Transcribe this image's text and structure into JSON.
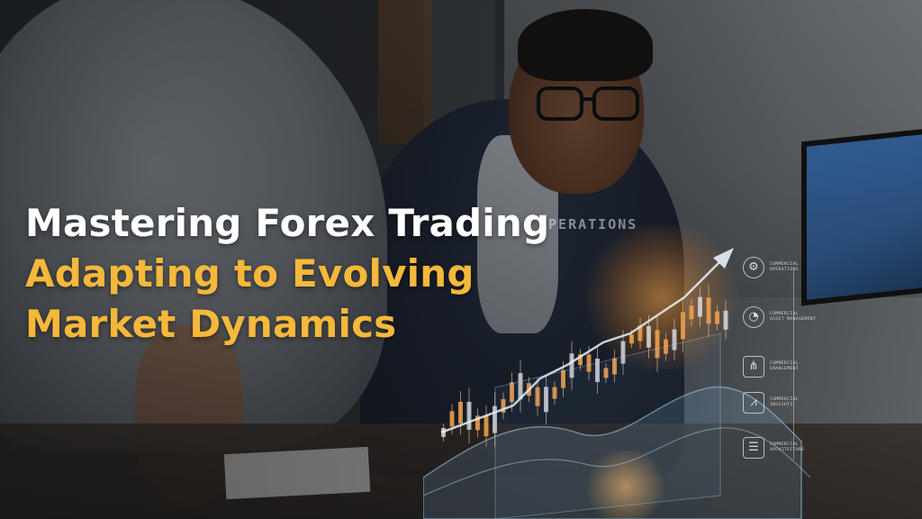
{
  "headline": {
    "line1": "Mastering Forex Trading",
    "line2": "Adapting to Evolving",
    "line3": "Market Dynamics"
  },
  "hologram": {
    "heading": "OPERATIONS",
    "menu": [
      {
        "icon": "gear-icon",
        "label": "COMMERCIAL\nOPERATIONS"
      },
      {
        "icon": "pie-chart-icon",
        "label": "COMMERCIAL\nASSET MANAGEMENT"
      },
      {
        "icon": "network-icon",
        "label": "COMMERCIAL\nENABLEMENT"
      },
      {
        "icon": "line-chart-icon",
        "label": "COMMERCIAL\nINSIGHTS"
      },
      {
        "icon": "server-stack-icon",
        "label": "COMMERCIAL\nARCHITECTURE"
      }
    ]
  },
  "colors": {
    "headline_white": "#ffffff",
    "headline_gold": "#f5b83a",
    "hologram_orange": "#f2a04a",
    "hologram_blue": "#9fc6e6"
  }
}
